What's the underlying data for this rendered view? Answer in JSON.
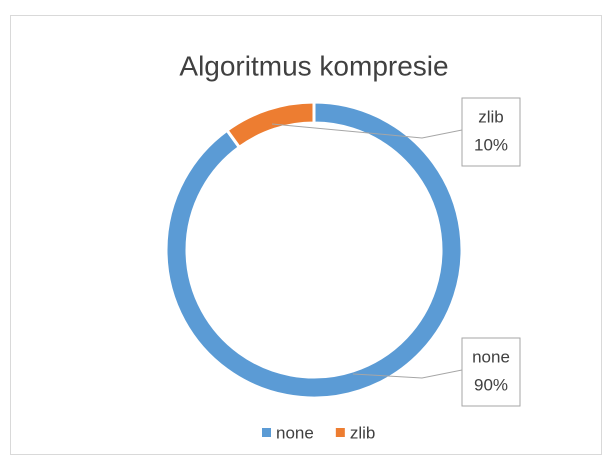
{
  "chart_data": {
    "type": "donut",
    "title": "Algoritmus kompresie",
    "categories": [
      "none",
      "zlib"
    ],
    "values": [
      90,
      10
    ],
    "value_labels": [
      "90%",
      "10%"
    ],
    "colors": [
      "#5b9bd5",
      "#ed7d31"
    ],
    "legend": "bottom"
  }
}
